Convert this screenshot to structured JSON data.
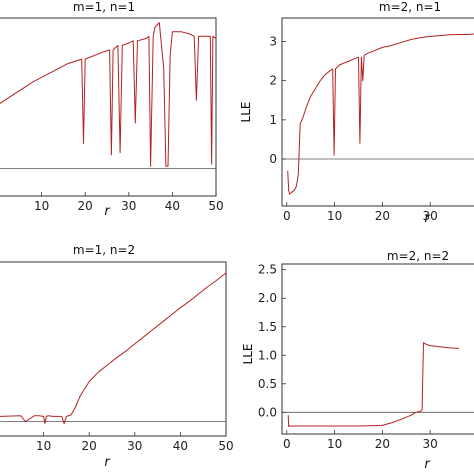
{
  "chart_data": [
    {
      "id": "tl",
      "type": "line",
      "title": "m=1, n=1",
      "xlabel": "r",
      "ylabel": "",
      "xlim": [
        0,
        50
      ],
      "ylim": [
        -0.6,
        3.3
      ],
      "xticks": [
        10,
        20,
        30,
        40,
        50
      ],
      "yticks": [],
      "zero_line": 0,
      "color": "#b22222",
      "series": [
        {
          "x": [
            0,
            4,
            8,
            12,
            16,
            19.2,
            19.6,
            20,
            24,
            25.6,
            26,
            26.4,
            27.5,
            28,
            28.5,
            30,
            31,
            31.5,
            32,
            34,
            34.6,
            35,
            35.6,
            36,
            37,
            38,
            38.5,
            39,
            39.5,
            40,
            42,
            44,
            45,
            45.5,
            46,
            48,
            48.7,
            49,
            49.3,
            50
          ],
          "y": [
            1.4,
            1.65,
            1.9,
            2.1,
            2.3,
            2.4,
            0.55,
            2.4,
            2.55,
            2.6,
            0.3,
            2.6,
            2.7,
            0.35,
            2.7,
            2.75,
            2.8,
            1.0,
            2.8,
            2.85,
            2.9,
            0.05,
            2.9,
            3.1,
            3.2,
            2.2,
            0.05,
            0.05,
            2.5,
            3.0,
            3.0,
            2.95,
            2.9,
            1.5,
            2.9,
            2.9,
            2.9,
            0.1,
            2.9,
            2.85
          ]
        }
      ]
    },
    {
      "id": "tr",
      "type": "line",
      "title": "m=2, n=1",
      "xlabel": "r",
      "ylabel": "LLE",
      "xlim": [
        -1,
        40
      ],
      "ylim": [
        -1.2,
        3.6
      ],
      "xticks": [
        0,
        10,
        20,
        30
      ],
      "yticks": [
        0,
        1,
        2,
        3
      ],
      "zero_line": 0,
      "color": "#b22222",
      "series": [
        {
          "x": [
            0.2,
            0.4,
            0.6,
            1.0,
            1.6,
            2.0,
            2.4,
            2.8,
            3.0,
            3.5,
            4,
            5,
            6,
            7,
            8,
            9,
            9.6,
            9.9,
            10.2,
            10.6,
            11,
            12,
            13,
            14,
            15,
            15.3,
            15.6,
            15.9,
            16.2,
            17,
            18,
            20,
            22,
            24,
            26,
            28,
            30,
            32,
            34,
            36,
            38,
            40
          ],
          "y": [
            -0.3,
            -0.8,
            -0.9,
            -0.85,
            -0.8,
            -0.7,
            -0.4,
            0.9,
            0.95,
            1.1,
            1.3,
            1.6,
            1.8,
            2.0,
            2.15,
            2.25,
            2.3,
            0.1,
            2.3,
            2.35,
            2.4,
            2.45,
            2.5,
            2.55,
            2.6,
            0.4,
            2.6,
            2.0,
            2.65,
            2.7,
            2.75,
            2.85,
            2.9,
            2.98,
            3.05,
            3.1,
            3.13,
            3.15,
            3.17,
            3.18,
            3.18,
            3.2
          ]
        }
      ]
    },
    {
      "id": "bl",
      "type": "line",
      "title": "m=1, n=2",
      "xlabel": "r",
      "ylabel": "",
      "xlim": [
        0,
        50
      ],
      "ylim": [
        -0.2,
        2.2
      ],
      "xticks": [
        10,
        20,
        30,
        40,
        50
      ],
      "yticks": [],
      "zero_line": 0,
      "color": "#b22222",
      "series": [
        {
          "x": [
            0,
            5,
            6,
            8,
            9,
            10,
            10.3,
            10.6,
            11,
            12,
            13,
            14,
            14.5,
            15,
            16,
            17,
            18,
            19,
            20,
            22,
            24,
            26,
            28,
            30,
            32,
            34,
            36,
            38,
            40,
            42,
            44,
            46,
            48,
            50
          ],
          "y": [
            0.07,
            0.08,
            0.0,
            0.08,
            0.08,
            0.07,
            -0.03,
            0.07,
            0.08,
            0.07,
            0.07,
            0.07,
            -0.03,
            0.07,
            0.09,
            0.2,
            0.35,
            0.45,
            0.55,
            0.68,
            0.78,
            0.88,
            0.97,
            1.07,
            1.17,
            1.27,
            1.37,
            1.47,
            1.57,
            1.66,
            1.76,
            1.86,
            1.95,
            2.05
          ]
        }
      ]
    },
    {
      "id": "br",
      "type": "line",
      "title": "m=2, n=2",
      "xlabel": "r",
      "ylabel": "LLE",
      "xlim": [
        -1,
        40
      ],
      "ylim": [
        -0.38,
        2.6
      ],
      "xticks": [
        0,
        10,
        20,
        30
      ],
      "yticks": [
        -0.0,
        0.5,
        1.0,
        1.5,
        2.0,
        2.5
      ],
      "ytick_labels": [
        "0.0",
        "0.5",
        "1.0",
        "1.5",
        "2.0",
        "2.5"
      ],
      "zero_line": 0,
      "color": "#b22222",
      "series": [
        {
          "x": [
            0.3,
            0.4,
            0.6,
            5,
            10,
            15,
            20,
            22,
            24,
            26,
            27,
            28,
            28.3,
            28.6,
            29,
            29.5,
            30,
            32,
            34,
            36
          ],
          "y": [
            -0.05,
            -0.25,
            -0.24,
            -0.24,
            -0.24,
            -0.24,
            -0.23,
            -0.18,
            -0.12,
            -0.05,
            0.0,
            0.02,
            0.05,
            1.22,
            1.2,
            1.18,
            1.17,
            1.15,
            1.13,
            1.12
          ]
        }
      ]
    }
  ]
}
